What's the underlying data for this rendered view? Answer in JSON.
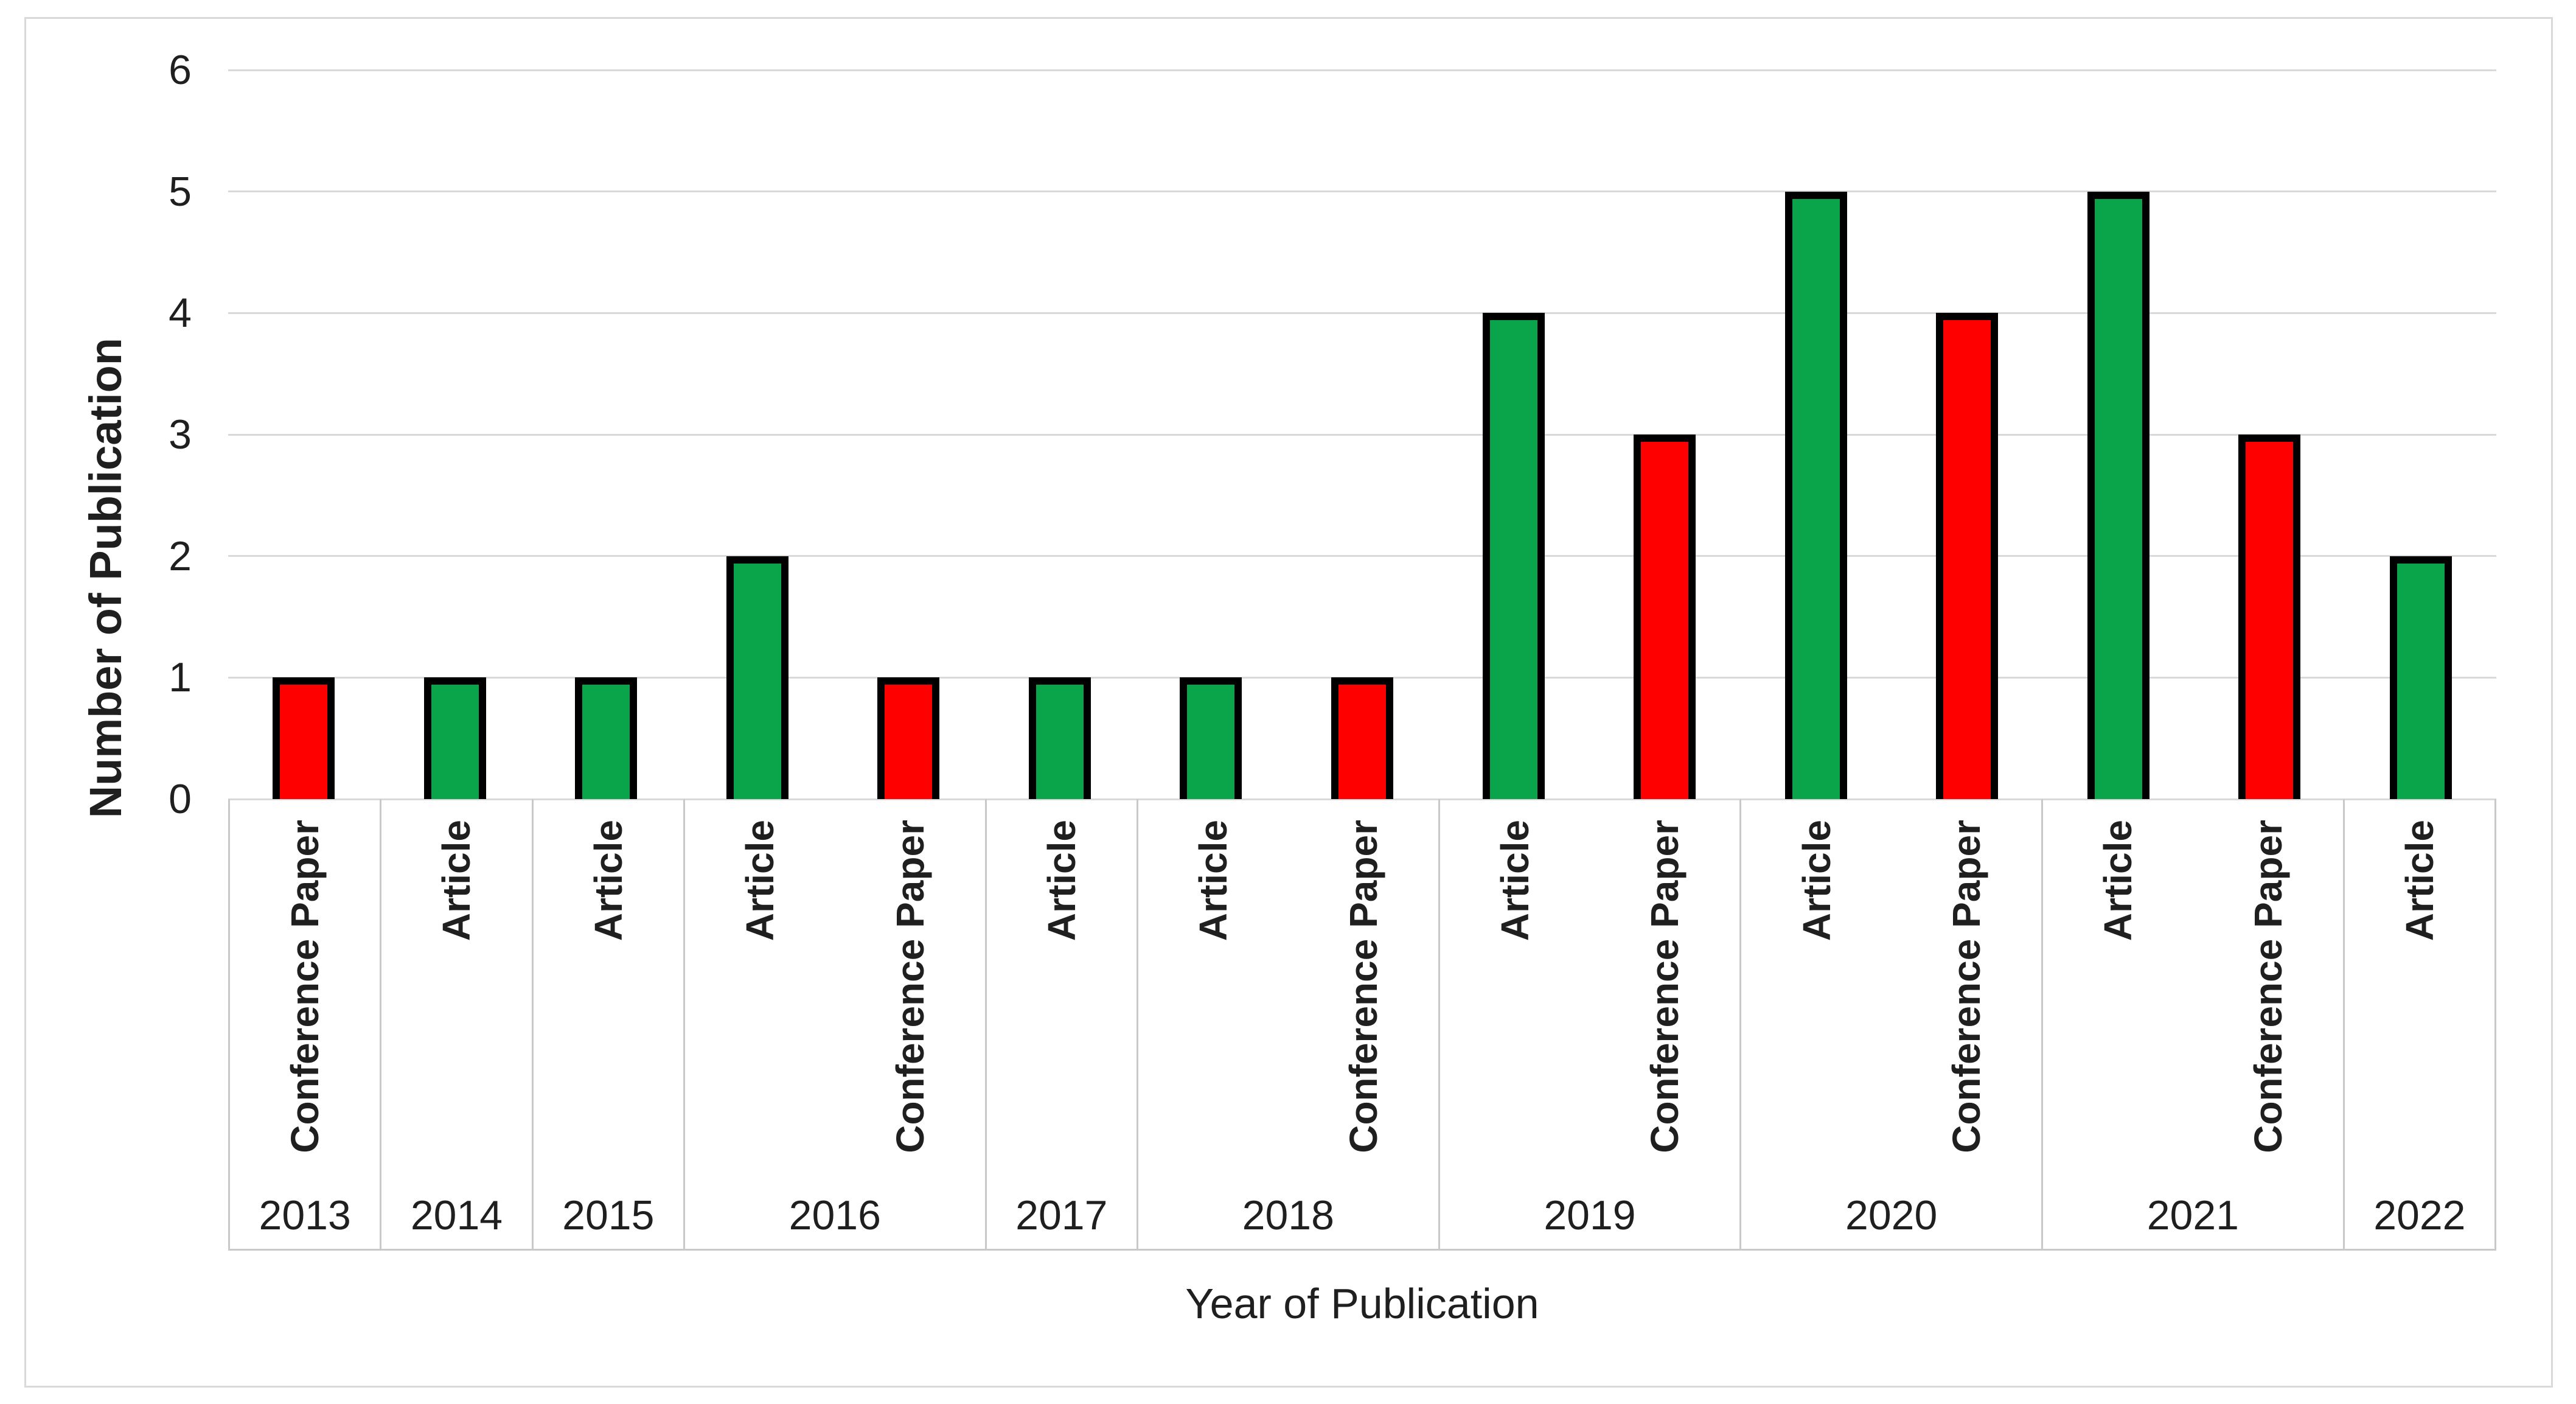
{
  "figure": {
    "background": "#FFFFFF",
    "frame_border_color": "#D9D9D9"
  },
  "chart_data": {
    "type": "bar",
    "title": "",
    "xlabel": "Year of Publication",
    "ylabel": "Number of Publication",
    "ylim": [
      0,
      6
    ],
    "ytick_labels": [
      "0",
      "1",
      "2",
      "3",
      "4",
      "5",
      "6"
    ],
    "grid": true,
    "legend": false,
    "gridline_color": "#D9D9D9",
    "band_border_color": "#C9C9C9",
    "text_color": "#1F1F1F",
    "bar_outline_color": "#000000",
    "series_colors": {
      "Article": "#0AA44A",
      "Conference Paper": "#FF0000"
    },
    "groups": [
      {
        "year": "2013",
        "bars": [
          {
            "type": "Conference Paper",
            "value": 1
          }
        ]
      },
      {
        "year": "2014",
        "bars": [
          {
            "type": "Article",
            "value": 1
          }
        ]
      },
      {
        "year": "2015",
        "bars": [
          {
            "type": "Article",
            "value": 1
          }
        ]
      },
      {
        "year": "2016",
        "bars": [
          {
            "type": "Article",
            "value": 2
          },
          {
            "type": "Conference Paper",
            "value": 1
          }
        ]
      },
      {
        "year": "2017",
        "bars": [
          {
            "type": "Article",
            "value": 1
          }
        ]
      },
      {
        "year": "2018",
        "bars": [
          {
            "type": "Article",
            "value": 1
          },
          {
            "type": "Conference Paper",
            "value": 1
          }
        ]
      },
      {
        "year": "2019",
        "bars": [
          {
            "type": "Article",
            "value": 4
          },
          {
            "type": "Conference Paper",
            "value": 3
          }
        ]
      },
      {
        "year": "2020",
        "bars": [
          {
            "type": "Article",
            "value": 5
          },
          {
            "type": "Conference Paper",
            "value": 4
          }
        ]
      },
      {
        "year": "2021",
        "bars": [
          {
            "type": "Article",
            "value": 5
          },
          {
            "type": "Conference Paper",
            "value": 3
          }
        ]
      },
      {
        "year": "2022",
        "bars": [
          {
            "type": "Article",
            "value": 2
          }
        ]
      }
    ]
  }
}
